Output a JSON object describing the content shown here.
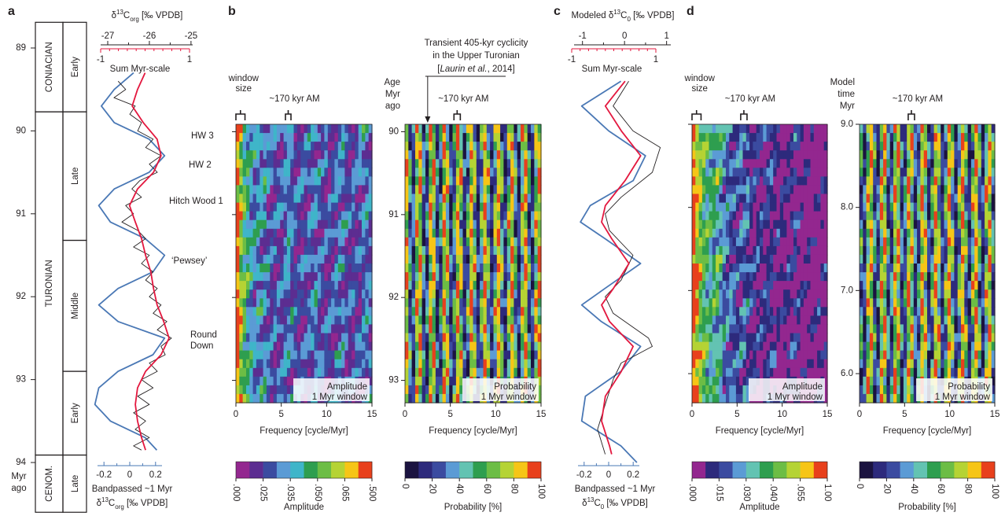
{
  "panels": [
    "a",
    "b",
    "c",
    "d"
  ],
  "stratigraphy": {
    "age_ticks": [
      89,
      90,
      91,
      92,
      93,
      94
    ],
    "age_unit": [
      "Myr",
      "ago"
    ],
    "stages": [
      {
        "label": "CONIACIAN",
        "top": 88.69,
        "base": 89.77
      },
      {
        "label": "TURONIAN",
        "top": 89.77,
        "base": 93.91
      },
      {
        "label": "CENOM.",
        "top": 93.91,
        "base": 94.6
      }
    ],
    "substages": [
      {
        "label": "Early",
        "top": 88.69,
        "base": 89.77
      },
      {
        "label": "Late",
        "top": 89.77,
        "base": 91.32
      },
      {
        "label": "Middle",
        "top": 91.32,
        "base": 92.9
      },
      {
        "label": "Early",
        "top": 92.9,
        "base": 93.91
      },
      {
        "label": "Late",
        "top": 93.91,
        "base": 94.6
      }
    ]
  },
  "panel_a": {
    "top_axis": {
      "title": {
        "delta": "δ",
        "sup": "13",
        "main": "C",
        "sub": "org",
        "unit": " [‰ VPDB]"
      },
      "lim": [
        -27.17,
        -24.96
      ],
      "ticks": [
        -27,
        -26,
        -25
      ],
      "minor_ticks": [
        -26.5,
        -25.5
      ]
    },
    "red_axis": {
      "title": "Sum Myr-scale",
      "color": "#e3173e",
      "lim": [
        -1,
        1
      ],
      "ticks": [
        -1,
        1
      ],
      "minor_ticks": [
        -0.8,
        -0.6,
        -0.4,
        -0.2,
        0,
        0.2,
        0.4,
        0.6,
        0.8
      ]
    },
    "bottom_axis": {
      "title": "Bandpassed ~1 Myr",
      "title2": {
        "delta": "δ",
        "sup": "13",
        "main": "C",
        "sub": "org",
        "unit": " [‰ VPDB]"
      },
      "color": "#4a78b5",
      "lim": [
        -0.25,
        0.25
      ],
      "ticks": [
        -0.2,
        0,
        0.2
      ],
      "minor_ticks": [
        -0.1,
        0.1
      ]
    },
    "events": [
      [
        "HW 3"
      ],
      [
        "HW 2"
      ],
      [
        "Hitch Wood 1"
      ],
      [
        "‘Pewsey’"
      ],
      [
        "Round",
        "Down"
      ]
    ],
    "series": [
      {
        "axis": "bottom_axis",
        "color": "#4a78b5",
        "age": [
          89.3,
          89.5,
          89.7,
          89.9,
          90.1,
          90.3,
          90.5,
          90.7,
          90.9,
          91.1,
          91.3,
          91.5,
          91.7,
          91.9,
          92.1,
          92.3,
          92.5,
          92.7,
          92.9,
          93.1,
          93.3,
          93.5,
          93.7,
          93.85
        ],
        "values": [
          0.03,
          -0.12,
          -0.22,
          -0.12,
          0.15,
          0.27,
          0.15,
          -0.12,
          -0.24,
          -0.15,
          0.12,
          0.27,
          0.18,
          -0.09,
          -0.24,
          -0.09,
          0.27,
          0.18,
          -0.09,
          -0.24,
          -0.27,
          -0.15,
          0.12,
          0.21
        ]
      },
      {
        "axis": "top_axis",
        "color": "#231f20",
        "age": [
          89.4,
          89.5,
          89.6,
          89.7,
          89.8,
          89.9,
          90.0,
          90.1,
          90.2,
          90.3,
          90.4,
          90.5,
          90.6,
          90.7,
          90.8,
          90.9,
          91.0,
          91.1,
          91.2,
          91.3,
          91.4,
          91.5,
          91.6,
          91.7,
          91.8,
          91.9,
          92.0,
          92.1,
          92.2,
          92.3,
          92.4,
          92.5,
          92.6,
          92.7,
          92.8,
          92.9,
          93.0,
          93.1,
          93.2,
          93.3,
          93.4,
          93.5,
          93.6,
          93.7,
          93.8,
          93.85
        ],
        "values": [
          -26.75,
          -26.57,
          -26.85,
          -26.34,
          -26.47,
          -26.19,
          -26.28,
          -25.91,
          -26.09,
          -25.72,
          -26.0,
          -25.81,
          -26.23,
          -26.42,
          -26.19,
          -26.57,
          -26.38,
          -26.66,
          -26.28,
          -26.09,
          -26.38,
          -26.0,
          -26.19,
          -25.91,
          -26.09,
          -25.81,
          -26.0,
          -25.72,
          -25.91,
          -25.58,
          -25.81,
          -25.47,
          -25.72,
          -25.62,
          -26.0,
          -25.81,
          -26.19,
          -25.91,
          -26.28,
          -26.0,
          -26.38,
          -26.09,
          -26.34,
          -26.0,
          -26.38,
          -26.19
        ]
      },
      {
        "axis": "red_axis",
        "color": "#e3173e",
        "age": [
          89.3,
          89.5,
          89.7,
          89.9,
          90.1,
          90.3,
          90.5,
          90.7,
          90.9,
          91.1,
          91.3,
          91.5,
          91.7,
          91.9,
          92.1,
          92.3,
          92.5,
          92.7,
          92.9,
          93.1,
          93.3,
          93.5,
          93.7,
          93.85
        ],
        "values": [
          0.0,
          -0.17,
          -0.29,
          -0.04,
          0.27,
          0.36,
          0.19,
          -0.17,
          -0.35,
          -0.22,
          -0.08,
          0.01,
          0.13,
          0.19,
          0.27,
          0.42,
          0.54,
          0.36,
          0.01,
          -0.17,
          -0.22,
          -0.17,
          -0.08,
          0.01
        ]
      }
    ]
  },
  "panel_c": {
    "top_axis": {
      "title": {
        "pre": "Modeled ",
        "delta": "δ",
        "sup": "13",
        "main": "C",
        "sub": "0",
        "unit": " [‰ VPDB]"
      },
      "lim": [
        -1.2,
        1.1
      ],
      "ticks": [
        -1,
        0,
        1
      ],
      "minor_ticks": [
        -0.5,
        0.5
      ]
    },
    "red_axis": {
      "title": "Sum Myr-scale",
      "color": "#e3173e",
      "lim": [
        -1,
        1
      ],
      "ticks": [
        -1,
        1
      ],
      "minor_ticks": [
        -0.8,
        -0.6,
        -0.4,
        -0.2,
        0,
        0.2,
        0.4,
        0.6,
        0.8
      ]
    },
    "bottom_axis": {
      "title": "Bandpassed ~1 Myr",
      "title2": {
        "delta": "δ",
        "sup": "13",
        "main": "C",
        "sub": "0",
        "unit": " [‰ VPDB]"
      },
      "color": "#4a78b5",
      "lim": [
        -0.25,
        0.25
      ],
      "ticks": [
        -0.2,
        0,
        0.2
      ],
      "minor_ticks": [
        -0.1,
        0.1
      ]
    },
    "series": [
      {
        "axis": "bottom_axis",
        "color": "#4a78b5",
        "age": [
          89.4,
          89.7,
          90.0,
          90.3,
          90.6,
          90.9,
          91.1,
          91.3,
          91.6,
          91.9,
          92.1,
          92.3,
          92.6,
          92.9,
          93.2,
          93.5,
          93.8,
          94.0
        ],
        "values": [
          0.1,
          -0.22,
          0,
          0.3,
          0.2,
          -0.15,
          -0.23,
          -0.03,
          0.26,
          -0.03,
          -0.22,
          -0.06,
          0.26,
          0.1,
          -0.19,
          -0.22,
          0.1,
          0.23
        ]
      },
      {
        "axis": "top_axis",
        "color": "#231f20",
        "age": [
          89.4,
          89.7,
          90.0,
          90.2,
          90.5,
          90.8,
          91.0,
          91.2,
          91.5,
          91.8,
          92.0,
          92.2,
          92.5,
          92.6,
          92.8,
          93.0,
          93.3,
          93.6,
          93.9
        ],
        "values": [
          0.1,
          -0.27,
          0.2,
          0.85,
          0.66,
          -0.08,
          -0.46,
          -0.36,
          0.2,
          -0.08,
          -0.46,
          -0.27,
          0.57,
          0.66,
          -0.08,
          -0.27,
          -0.46,
          -0.64,
          -0.46
        ]
      },
      {
        "axis": "red_axis",
        "color": "#e3173e",
        "age": [
          89.4,
          89.7,
          90.0,
          90.3,
          90.6,
          90.9,
          91.1,
          91.3,
          91.6,
          91.9,
          92.1,
          92.3,
          92.6,
          92.9,
          93.2,
          93.5,
          93.8,
          93.9
        ],
        "values": [
          0.27,
          -0.2,
          0.18,
          0.64,
          0.27,
          -0.2,
          -0.29,
          -0.05,
          0.36,
          -0.01,
          -0.29,
          -0.1,
          0.46,
          0.18,
          -0.2,
          -0.29,
          -0.1,
          -0.05
        ]
      }
    ]
  },
  "panel_b": {
    "xlabel": "Frequency [cycle/Myr]",
    "xlim": [
      0,
      15
    ],
    "xticks": [
      0,
      5,
      10,
      15
    ],
    "ylim": [
      89.91,
      93.27
    ],
    "yticks": [
      90,
      91,
      92,
      93
    ],
    "ylabel": [
      "Age",
      "Myr",
      "ago"
    ],
    "note": {
      "lines": [
        "Transient 405-kyr cyclicity",
        "in the Upper Turonian"
      ],
      "ref": {
        "open": "[",
        "author": "Laurin et al.",
        "rest": ", 2014]"
      },
      "arrow_frequency": 2.5
    },
    "plots": [
      {
        "kind": "amplitude",
        "window_label": [
          "window",
          "size"
        ],
        "window_bracket": [
          0,
          1
        ],
        "am_label": "~170 kyr AM",
        "am_bracket": [
          5.46,
          6.07
        ],
        "legend": [
          "Amplitude",
          "1 Myr window"
        ],
        "colorbar": {
          "title": "Amplitude",
          "colors": [
            "#93278f",
            "#5c2d91",
            "#3b4ba0",
            "#5b9bd5",
            "#3fb5c9",
            "#2e9e4f",
            "#6cbd45",
            "#b5d334",
            "#f6c516",
            "#e8401c"
          ],
          "ticks": [
            {
              "value": 0,
              "label": ".000"
            },
            {
              "value": 0.025,
              "label": ".025"
            },
            {
              "value": 0.035,
              "label": ".035"
            },
            {
              "value": 0.05,
              "label": ".050"
            },
            {
              "value": 0.065,
              "label": ".065"
            },
            {
              "value": 0.5,
              "label": ".500"
            }
          ]
        }
      },
      {
        "kind": "probability",
        "am_label": "~170 kyr AM",
        "am_bracket": [
          5.4,
          6.1
        ],
        "legend": [
          "Probability",
          "1 Myr window"
        ],
        "colorbar": {
          "title": "Probability [%]",
          "colors": [
            "#1b1340",
            "#2d2a7c",
            "#3b4ba0",
            "#5b9bd5",
            "#63c3b2",
            "#2e9e4f",
            "#6cbd45",
            "#b5d334",
            "#f6c516",
            "#e8401c"
          ],
          "ticks": [
            0,
            20,
            40,
            60,
            80,
            100
          ]
        }
      }
    ]
  },
  "panel_d": {
    "xlabel": "Frequency [cycle/Myr]",
    "xlim": [
      0,
      15
    ],
    "xticks": [
      0,
      5,
      10,
      15
    ],
    "ylim": [
      9.0,
      5.65
    ],
    "yticks": [
      {
        "value": 9,
        "label": "9.0"
      },
      {
        "value": 8,
        "label": "8.0"
      },
      {
        "value": 7,
        "label": "7.0"
      },
      {
        "value": 6,
        "label": "6.0"
      }
    ],
    "ylabel": [
      "Model",
      "time",
      "Myr"
    ],
    "plots": [
      {
        "kind": "amplitude",
        "window_label": [
          "window",
          "size"
        ],
        "window_bracket": [
          0,
          1
        ],
        "am_label": "~170 kyr AM",
        "am_bracket": [
          5.4,
          6.1
        ],
        "legend": [
          "Amplitude",
          "1 Myr window"
        ],
        "colorbar": {
          "title": "Amplitude",
          "colors": [
            "#93278f",
            "#2d2a7c",
            "#3b4ba0",
            "#5b9bd5",
            "#63c3b2",
            "#2e9e4f",
            "#6cbd45",
            "#b5d334",
            "#f6c516",
            "#e8401c"
          ],
          "ticks": [
            {
              "value": 0,
              "label": ".000"
            },
            {
              "value": 0.015,
              "label": ".015"
            },
            {
              "value": 0.03,
              "label": ".030"
            },
            {
              "value": 0.04,
              "label": ".040"
            },
            {
              "value": 0.055,
              "label": ".055"
            },
            {
              "value": 1,
              "label": "1.00"
            }
          ]
        }
      },
      {
        "kind": "probability",
        "am_label": "~170 kyr AM",
        "am_bracket": [
          5.4,
          6.1
        ],
        "legend": [
          "Probability",
          "1 Myr window"
        ],
        "colorbar": {
          "title": "Probability [%]",
          "colors": [
            "#1b1340",
            "#2d2a7c",
            "#3b4ba0",
            "#5b9bd5",
            "#63c3b2",
            "#2e9e4f",
            "#6cbd45",
            "#b5d334",
            "#f6c516",
            "#e8401c"
          ],
          "ticks": [
            0,
            20,
            40,
            60,
            80,
            100
          ]
        }
      }
    ]
  }
}
